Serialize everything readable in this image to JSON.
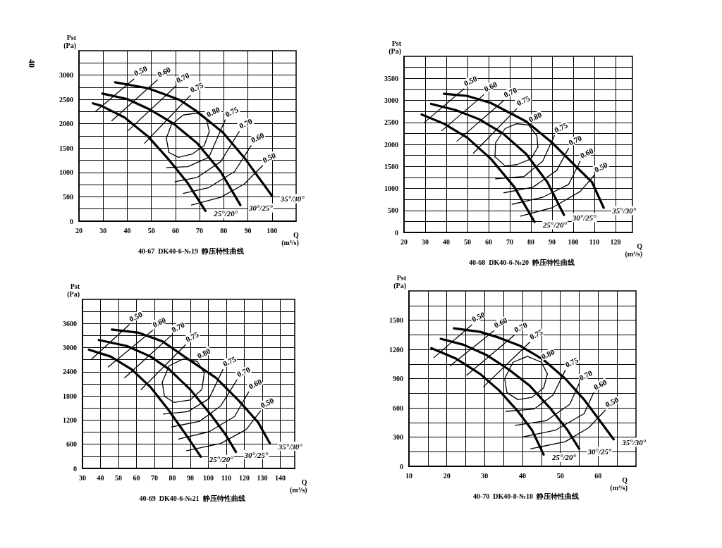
{
  "chart_data": [
    {
      "type": "line",
      "title": "40-67  DK40-6-№19  静压特性曲线",
      "xlabel": "Q\n(m³/s)",
      "ylabel": "Pst\n(Pa)",
      "grid": true,
      "marker": "none",
      "line_style": "solid",
      "xlim": [
        20,
        110
      ],
      "xticks": [
        20,
        30,
        40,
        50,
        60,
        70,
        80,
        90,
        100
      ],
      "ylim": [
        0,
        3500
      ],
      "yticks": [
        0,
        {
          "value": 250,
          "label": null
        },
        500,
        {
          "value": 750,
          "label": null
        },
        1000,
        {
          "value": 1250,
          "label": null
        },
        1500,
        {
          "value": 1750,
          "label": null
        },
        2000,
        {
          "value": 2250,
          "label": null
        },
        2500,
        {
          "value": 2750,
          "label": null
        },
        3000,
        {
          "value": 3250,
          "label": null
        }
      ],
      "series": [
        {
          "name": "35°/30°",
          "color": "#000000",
          "x": [
            35,
            48.6,
            61.7,
            69,
            79.7,
            88.4,
            100
          ],
          "values": [
            2850,
            2730,
            2490,
            2250,
            1820,
            1310,
            520
          ]
        },
        {
          "name": "30°/25°",
          "color": "#000000",
          "x": [
            29.7,
            39.9,
            49.1,
            59,
            69,
            78.7,
            86.9
          ],
          "values": [
            2620,
            2510,
            2300,
            2010,
            1600,
            1020,
            330
          ]
        },
        {
          "name": "25°/20°",
          "color": "#000000",
          "x": [
            25.8,
            29.2,
            38.9,
            48.6,
            57.3,
            65.1,
            72.4
          ],
          "values": [
            2420,
            2370,
            2130,
            1740,
            1260,
            780,
            210
          ]
        },
        {
          "color": "#000000",
          "x": [
            26.8,
            42.8
          ],
          "values": [
            2250,
            2920
          ]
        },
        {
          "color": "#000000",
          "x": [
            33.6,
            52.5
          ],
          "values": [
            2060,
            2900
          ]
        },
        {
          "color": "#000000",
          "x": [
            40.4,
            60.3
          ],
          "values": [
            1860,
            2780
          ]
        },
        {
          "color": "#000000",
          "x": [
            47.2,
            66.1
          ],
          "values": [
            1600,
            2580
          ]
        },
        {
          "color": "#000000",
          "x": [
            56.2,
            58.3,
            63.2,
            69,
            72.9,
            74
          ],
          "values": [
            1700,
            1980,
            2180,
            2220,
            2080,
            1840
          ]
        },
        {
          "color": "#000000",
          "x": [
            56.2,
            57.3,
            61.2,
            67,
            71.9,
            74
          ],
          "values": [
            1700,
            1410,
            1310,
            1380,
            1550,
            1840
          ]
        },
        {
          "color": "#000000",
          "x": [
            56.4,
            65.1,
            73.8,
            80.6
          ],
          "values": [
            1100,
            1120,
            1310,
            2080
          ]
        },
        {
          "color": "#000000",
          "x": [
            59.8,
            69,
            78.7,
            86.4
          ],
          "values": [
            810,
            900,
            1220,
            1840
          ]
        },
        {
          "color": "#000000",
          "x": [
            63.2,
            73.8,
            84.5,
            91.3
          ],
          "values": [
            570,
            690,
            1020,
            1550
          ]
        },
        {
          "color": "#000000",
          "x": [
            66.6,
            78.7,
            88.4,
            96.1
          ],
          "values": [
            330,
            490,
            760,
            1140
          ]
        }
      ],
      "annotations": [
        "40",
        {
          "text": "0.50",
          "x": 42.8,
          "y": 2920
        },
        {
          "text": "0.60",
          "x": 52.5,
          "y": 2900
        },
        {
          "text": "0.70",
          "x": 60.3,
          "y": 2780
        },
        {
          "text": "0.75",
          "x": 66.1,
          "y": 2580
        },
        {
          "text": "0.80",
          "x": 72.9,
          "y": 2080
        },
        {
          "text": "0.75",
          "x": 80.6,
          "y": 2080
        },
        {
          "text": "0.70",
          "x": 86.4,
          "y": 1840
        },
        {
          "text": "0.60",
          "x": 91.3,
          "y": 1550
        },
        {
          "text": "0.50",
          "x": 96.1,
          "y": 1140
        }
      ]
    },
    {
      "type": "line",
      "title": "40-68  DK40-6-№20  静压特性曲线",
      "xlabel": "Q\n(m³/s)",
      "ylabel": "Pst\n(Pa)",
      "grid": true,
      "marker": "none",
      "line_style": "solid",
      "xlim": [
        20,
        128
      ],
      "xticks": [
        20,
        30,
        40,
        50,
        60,
        70,
        80,
        90,
        100,
        110,
        120
      ],
      "ylim": [
        0,
        4000
      ],
      "yticks": [
        0,
        {
          "value": 250,
          "label": null
        },
        500,
        {
          "value": 750,
          "label": null
        },
        1000,
        {
          "value": 1250,
          "label": null
        },
        1500,
        {
          "value": 1750,
          "label": null
        },
        2000,
        {
          "value": 2250,
          "label": null
        },
        2500,
        {
          "value": 2750,
          "label": null
        },
        3000,
        {
          "value": 3250,
          "label": null
        },
        3500,
        {
          "value": 3750,
          "label": null
        }
      ],
      "series": [
        {
          "name": "35°/30°",
          "color": "#000000",
          "x": [
            38.9,
            50,
            61.1,
            77.8,
            90,
            100,
            108.9,
            114.4
          ],
          "values": [
            3150,
            3100,
            2940,
            2520,
            2040,
            1560,
            1140,
            560
          ]
        },
        {
          "name": "30°/25°",
          "color": "#000000",
          "x": [
            32.8,
            44.4,
            55.6,
            66.7,
            77.8,
            87.8,
            95.6
          ],
          "values": [
            2920,
            2780,
            2570,
            2250,
            1780,
            1140,
            400
          ]
        },
        {
          "name": "25°/20°",
          "color": "#000000",
          "x": [
            28.3,
            38.9,
            50,
            61.1,
            72.2,
            81.7
          ],
          "values": [
            2680,
            2470,
            2150,
            1670,
            1030,
            240
          ]
        },
        {
          "color": "#000000",
          "x": [
            29.4,
            48.3
          ],
          "values": [
            2490,
            3260
          ]
        },
        {
          "color": "#000000",
          "x": [
            37.8,
            57.8
          ],
          "values": [
            2310,
            3130
          ]
        },
        {
          "color": "#000000",
          "x": [
            45,
            67.2
          ],
          "values": [
            2070,
            3000
          ]
        },
        {
          "color": "#000000",
          "x": [
            52.8,
            73.3
          ],
          "values": [
            1800,
            2810
          ]
        },
        {
          "color": "#000000",
          "x": [
            63,
            63.3,
            67.8,
            73.3,
            78.9,
            82.8,
            83.3
          ],
          "values": [
            1720,
            2040,
            2360,
            2470,
            2440,
            2200,
            1940
          ]
        },
        {
          "color": "#000000",
          "x": [
            63,
            67.8,
            73.3,
            80,
            83.3
          ],
          "values": [
            1720,
            1510,
            1540,
            1670,
            1940
          ]
        },
        {
          "color": "#000000",
          "x": [
            63.3,
            76.7,
            85.6,
            91.1
          ],
          "values": [
            1220,
            1270,
            1620,
            2200
          ]
        },
        {
          "color": "#000000",
          "x": [
            67.2,
            81.1,
            92.2,
            97.8
          ],
          "values": [
            900,
            1030,
            1410,
            1910
          ]
        },
        {
          "color": "#000000",
          "x": [
            71.1,
            85.6,
            97.8,
            103.3
          ],
          "values": [
            640,
            800,
            1090,
            1620
          ]
        },
        {
          "color": "#000000",
          "x": [
            75,
            90,
            103.3,
            110
          ],
          "values": [
            370,
            560,
            930,
            1300
          ]
        }
      ],
      "annotations": [
        {
          "text": "0.50",
          "x": 48.3,
          "y": 3260
        },
        {
          "text": "0.60",
          "x": 57.8,
          "y": 3130
        },
        {
          "text": "0.70",
          "x": 67.2,
          "y": 3000
        },
        {
          "text": "0.75",
          "x": 73.3,
          "y": 2810
        },
        {
          "text": "0.80",
          "x": 78.9,
          "y": 2440
        },
        {
          "text": "0.75",
          "x": 91.1,
          "y": 2200
        },
        {
          "text": "0.70",
          "x": 97.8,
          "y": 1910
        },
        {
          "text": "0.60",
          "x": 103.3,
          "y": 1620
        },
        {
          "text": "0.50",
          "x": 110,
          "y": 1300
        }
      ]
    },
    {
      "type": "line",
      "title": "40-69  DK40-6-№21  静压特性曲线",
      "xlabel": "Q\n(m³/s)",
      "ylabel": "Pst\n(Pa)",
      "grid": true,
      "marker": "none",
      "line_style": "solid",
      "xlim": [
        30,
        148
      ],
      "xticks": [
        30,
        40,
        50,
        60,
        70,
        80,
        90,
        100,
        110,
        120,
        130,
        140
      ],
      "ylim": [
        0,
        4200
      ],
      "yticks": [
        0,
        {
          "value": 300,
          "label": null
        },
        600,
        {
          "value": 900,
          "label": null
        },
        1200,
        {
          "value": 1500,
          "label": null
        },
        1800,
        {
          "value": 2100,
          "label": null
        },
        2400,
        {
          "value": 2700,
          "label": null
        },
        3000,
        {
          "value": 3300,
          "label": null
        },
        3600,
        {
          "value": 3900,
          "label": null
        }
      ],
      "series": [
        {
          "name": "35°/30°",
          "color": "#000000",
          "x": [
            46.3,
            61.3,
            74.3,
            88.6,
            104.2,
            117.2,
            127.7,
            134.2
          ],
          "values": [
            3450,
            3370,
            3160,
            2720,
            2250,
            1670,
            1140,
            620
          ]
        },
        {
          "name": "30°/25°",
          "color": "#000000",
          "x": [
            39.1,
            54.7,
            67.8,
            78.2,
            89.9,
            101.6,
            109.4,
            115.3
          ],
          "values": [
            3190,
            3040,
            2780,
            2460,
            1960,
            1320,
            850,
            410
          ]
        },
        {
          "name": "25°/20°",
          "color": "#000000",
          "x": [
            33.6,
            45.6,
            57.3,
            67.8,
            78.2,
            87.3,
            95.8
          ],
          "values": [
            2950,
            2780,
            2460,
            2020,
            1430,
            850,
            290
          ]
        },
        {
          "color": "#000000",
          "x": [
            35.2,
            56
          ],
          "values": [
            2720,
            3570
          ]
        },
        {
          "color": "#000000",
          "x": [
            44.3,
            69
          ],
          "values": [
            2520,
            3430
          ]
        },
        {
          "color": "#000000",
          "x": [
            53.4,
            79.5
          ],
          "values": [
            2250,
            3310
          ]
        },
        {
          "color": "#000000",
          "x": [
            62.6,
            87.3
          ],
          "values": [
            1960,
            3070
          ]
        },
        {
          "color": "#000000",
          "x": [
            74.3,
            78.2,
            86,
            93.8,
            97.7
          ],
          "values": [
            2140,
            2550,
            2720,
            2660,
            2370
          ]
        },
        {
          "color": "#000000",
          "x": [
            74.3,
            75.6,
            80.8,
            89.9,
            96.4,
            97.7
          ],
          "values": [
            2140,
            1790,
            1640,
            1700,
            1960,
            2370
          ]
        },
        {
          "color": "#000000",
          "x": [
            74.9,
            88.6,
            100.3,
            108.1
          ],
          "values": [
            1350,
            1410,
            1730,
            2460
          ]
        },
        {
          "color": "#000000",
          "x": [
            79.5,
            95.1,
            106.8,
            115.9
          ],
          "values": [
            1030,
            1170,
            1550,
            2200
          ]
        },
        {
          "color": "#000000",
          "x": [
            83.4,
            100.3,
            114.6,
            122.4
          ],
          "values": [
            730,
            910,
            1290,
            1900
          ]
        },
        {
          "color": "#000000",
          "x": [
            87.9,
            106.8,
            121.1,
            129
          ],
          "values": [
            440,
            620,
            970,
            1430
          ]
        }
      ],
      "annotations": [
        {
          "text": "0.50",
          "x": 56,
          "y": 3570
        },
        {
          "text": "0.60",
          "x": 69,
          "y": 3430
        },
        {
          "text": "0.70",
          "x": 79.5,
          "y": 3310
        },
        {
          "text": "0.75",
          "x": 87.3,
          "y": 3070
        },
        {
          "text": "0.80",
          "x": 93.8,
          "y": 2660
        },
        {
          "text": "0.75",
          "x": 108.1,
          "y": 2460
        },
        {
          "text": "0.70",
          "x": 115.9,
          "y": 2200
        },
        {
          "text": "0.60",
          "x": 122.4,
          "y": 1900
        },
        {
          "text": "0.50",
          "x": 129,
          "y": 1430
        }
      ]
    },
    {
      "type": "line",
      "title": "40-70  DK40-8-№18  静压特性曲线",
      "xlabel": "Q\n(m³/s)",
      "ylabel": "Pst\n(Pa)",
      "grid": true,
      "marker": "none",
      "line_style": "solid",
      "xlim": [
        10,
        70
      ],
      "xticks": [
        10,
        {
          "value": 15,
          "label": null
        },
        20,
        {
          "value": 25,
          "label": null
        },
        30,
        {
          "value": 35,
          "label": null
        },
        40,
        {
          "value": 45,
          "label": null
        },
        50,
        {
          "value": 55,
          "label": null
        },
        60,
        {
          "value": 65,
          "label": null
        }
      ],
      "ylim": [
        0,
        1800
      ],
      "yticks": [
        0,
        {
          "value": 150,
          "label": null
        },
        300,
        {
          "value": 450,
          "label": null
        },
        600,
        {
          "value": 750,
          "label": null
        },
        900,
        {
          "value": 1050,
          "label": null
        },
        1200,
        {
          "value": 1350,
          "label": null
        },
        1500,
        {
          "value": 1650,
          "label": null
        }
      ],
      "series": [
        {
          "name": "35°/30°",
          "color": "#000000",
          "x": [
            21.9,
            28.8,
            33.8,
            39.4,
            45.6,
            51.3,
            56.3,
            60,
            64.1
          ],
          "values": [
            1416,
            1380,
            1320,
            1236,
            1092,
            900,
            684,
            492,
            276
          ]
        },
        {
          "name": "30°/25°",
          "color": "#000000",
          "x": [
            18.4,
            24.4,
            30.6,
            36.3,
            41.9,
            47.5,
            51.9,
            55
          ],
          "values": [
            1308,
            1248,
            1140,
            996,
            828,
            588,
            372,
            180
          ]
        },
        {
          "name": "25°/20°",
          "color": "#000000",
          "x": [
            15.9,
            22.5,
            28.8,
            33.8,
            38.8,
            42.5,
            45.6
          ],
          "values": [
            1212,
            1104,
            948,
            780,
            564,
            372,
            120
          ]
        },
        {
          "color": "#000000",
          "x": [
            16.6,
            26.6
          ],
          "values": [
            1116,
            1452
          ]
        },
        {
          "color": "#000000",
          "x": [
            20.9,
            32.5
          ],
          "values": [
            1032,
            1392
          ]
        },
        {
          "color": "#000000",
          "x": [
            25.3,
            37.8
          ],
          "values": [
            936,
            1344
          ]
        },
        {
          "color": "#000000",
          "x": [
            29.7,
            41.9
          ],
          "values": [
            816,
            1272
          ]
        },
        {
          "color": "#000000",
          "x": [
            35.3,
            37.5,
            41.3,
            45,
            46.6
          ],
          "values": [
            900,
            1068,
            1128,
            1068,
            948
          ]
        },
        {
          "color": "#000000",
          "x": [
            35.3,
            35.9,
            38.8,
            42.5,
            45.6,
            46.6
          ],
          "values": [
            900,
            756,
            684,
            708,
            804,
            948
          ]
        },
        {
          "color": "#000000",
          "x": [
            35.6,
            43.1,
            48.1,
            51.3
          ],
          "values": [
            564,
            588,
            732,
            984
          ]
        },
        {
          "color": "#000000",
          "x": [
            38.1,
            46.3,
            52.5,
            55
          ],
          "values": [
            420,
            468,
            636,
            852
          ]
        },
        {
          "color": "#000000",
          "x": [
            40,
            48.8,
            56.3,
            58.8
          ],
          "values": [
            300,
            372,
            540,
            756
          ]
        },
        {
          "color": "#000000",
          "x": [
            42.2,
            51.3,
            57.5,
            61.9
          ],
          "values": [
            180,
            252,
            396,
            576
          ]
        }
      ],
      "annotations": [
        {
          "text": "0.50",
          "x": 26.6,
          "y": 1452
        },
        {
          "text": "0.60",
          "x": 32.5,
          "y": 1392
        },
        {
          "text": "0.70",
          "x": 37.8,
          "y": 1344
        },
        {
          "text": "0.75",
          "x": 41.9,
          "y": 1272
        },
        {
          "text": "0.80",
          "x": 45,
          "y": 1068
        },
        {
          "text": "0.75",
          "x": 51.3,
          "y": 984
        },
        {
          "text": "0.70",
          "x": 55,
          "y": 852
        },
        {
          "text": "0.60",
          "x": 58.8,
          "y": 756
        },
        {
          "text": "0.50",
          "x": 61.9,
          "y": 576
        }
      ]
    }
  ]
}
